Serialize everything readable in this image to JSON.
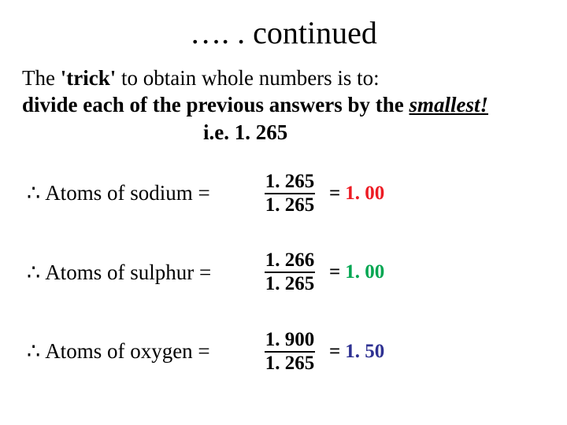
{
  "title": "…. . continued",
  "intro": {
    "line1_pre": "The ",
    "line1_bold": "'trick'",
    "line1_post": " to obtain whole numbers is to:",
    "line2_pre": "divide each of the previous answers by the ",
    "line2_smallest": "smallest!",
    "ie": "i.e. 1. 265"
  },
  "rows": [
    {
      "label": "Atoms of sodium =",
      "numerator": "1. 265",
      "denominator": "1. 265",
      "result": "1. 00",
      "result_color": "#ed1c24"
    },
    {
      "label": "Atoms of sulphur =",
      "numerator": "1. 266",
      "denominator": "1. 265",
      "result": "1. 00",
      "result_color": "#00a651"
    },
    {
      "label": "Atoms of oxygen =",
      "numerator": "1. 900",
      "denominator": "1. 265",
      "result": "1. 50",
      "result_color": "#2e3192"
    }
  ],
  "therefore_symbol": "∴"
}
